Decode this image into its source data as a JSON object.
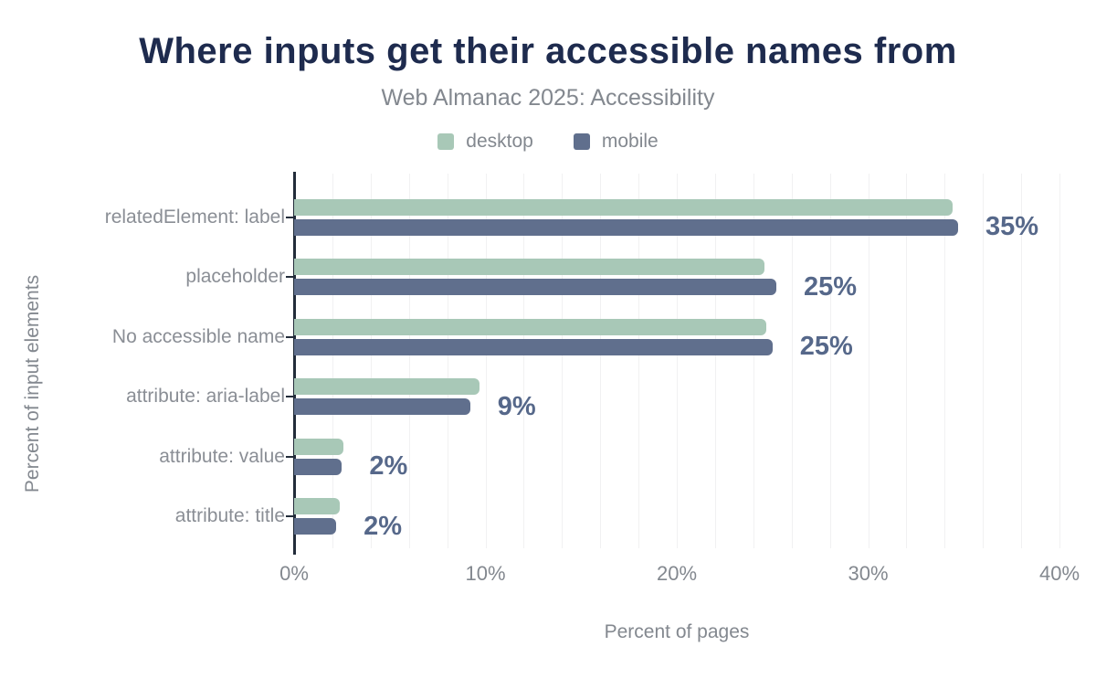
{
  "title": "Where inputs get their accessible names from",
  "subtitle": "Web Almanac 2025: Accessibility",
  "legend": [
    {
      "label": "desktop",
      "color": "#a8c8b7"
    },
    {
      "label": "mobile",
      "color": "#606f8d"
    }
  ],
  "colors": {
    "title": "#1e2b4e",
    "desktop_bar": "#a8c8b7",
    "mobile_bar": "#606f8d",
    "value_label": "#56688a",
    "axis_line": "#222c3a",
    "gridline": "#f1f1f2",
    "secondary_text": "#83888f"
  },
  "chart_data": {
    "type": "bar",
    "orientation": "horizontal",
    "title": "Where inputs get their accessible names from",
    "subtitle": "Web Almanac 2025: Accessibility",
    "categories": [
      "relatedElement: label",
      "placeholder",
      "No accessible name",
      "attribute: aria-label",
      "attribute: value",
      "attribute: title"
    ],
    "series": [
      {
        "name": "desktop",
        "color": "#a8c8b7",
        "values": [
          34.4,
          24.6,
          24.7,
          9.7,
          2.6,
          2.4
        ]
      },
      {
        "name": "mobile",
        "color": "#606f8d",
        "values": [
          34.7,
          25.2,
          25.0,
          9.2,
          2.5,
          2.2
        ]
      }
    ],
    "value_labels": [
      "35%",
      "25%",
      "25%",
      "9%",
      "2%",
      "2%"
    ],
    "xlabel": "Percent of pages",
    "ylabel": "Percent of input elements",
    "x_ticks": [
      "0%",
      "10%",
      "20%",
      "30%",
      "40%"
    ],
    "xlim": [
      0,
      40
    ],
    "grid_step_percent": 2,
    "grid": "vertical-minor",
    "legend_position": "top-center"
  }
}
